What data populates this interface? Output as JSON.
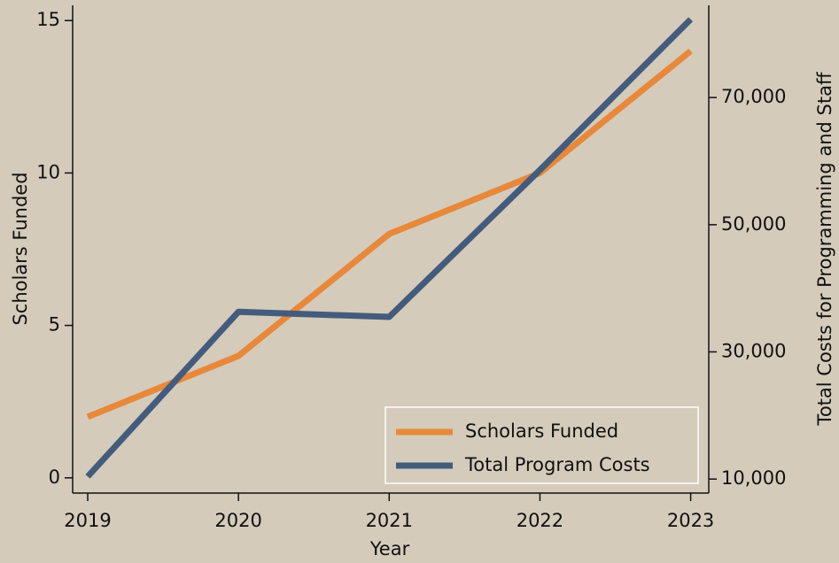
{
  "chart_data": {
    "type": "line",
    "x": [
      2019,
      2020,
      2021,
      2022,
      2023
    ],
    "xlabel": "Year",
    "ylabel": "Scholars Funded",
    "y2label": "Total Costs for Programming and Staff",
    "series": [
      {
        "name": "Scholars Funded",
        "color": "#e8883a",
        "values": [
          2,
          4,
          8,
          10,
          14
        ]
      },
      {
        "name": "Total Program Costs",
        "color": "#445c7c",
        "axis": "y2",
        "values": [
          10400,
          36300,
          35500,
          58600,
          82300
        ]
      }
    ],
    "xlim": [
      2018.9,
      2023.12
    ],
    "xticks": [
      2019,
      2020,
      2021,
      2022,
      2023
    ],
    "ylim": [
      -0.5,
      15.5
    ],
    "yticks": [
      0,
      5,
      10,
      15
    ],
    "y2lim": [
      7800,
      84500
    ],
    "y2ticks": [
      {
        "value": 10000,
        "label": "10,000"
      },
      {
        "value": 30000,
        "label": "30,000"
      },
      {
        "value": 50000,
        "label": "50,000"
      },
      {
        "value": 70000,
        "label": "70,000"
      }
    ],
    "legend": "lower right"
  }
}
